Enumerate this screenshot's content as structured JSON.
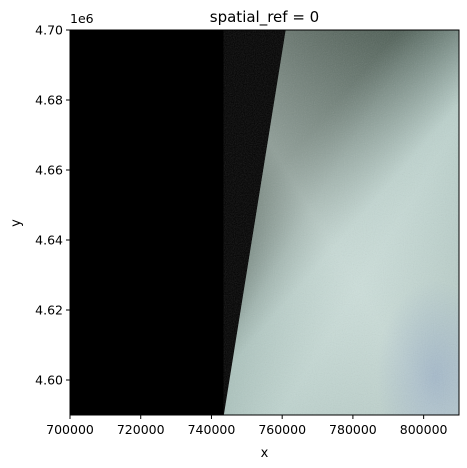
{
  "chart_data": {
    "type": "heatmap",
    "title": "spatial_ref = 0",
    "xlabel": "x",
    "ylabel": "y",
    "y_offset_label": "1e6",
    "xlim": [
      700000,
      810000
    ],
    "ylim": [
      4590000,
      4700000
    ],
    "x_ticks": [
      700000,
      720000,
      740000,
      760000,
      780000,
      800000
    ],
    "x_tick_labels": [
      "700000",
      "720000",
      "740000",
      "760000",
      "780000",
      "800000"
    ],
    "y_ticks": [
      4600000,
      4620000,
      4640000,
      4660000,
      4680000,
      4700000
    ],
    "y_tick_labels": [
      "4.60",
      "4.62",
      "4.64",
      "4.66",
      "4.68",
      "4.70"
    ],
    "nodata_color": "#000000",
    "valid_data_boundary": {
      "top_x": 761000,
      "bottom_x": 743500
    },
    "colors": {
      "vegetation": "#27352a",
      "haze": "#a9c3bd",
      "bright_haze": "#cfe0dc"
    }
  }
}
